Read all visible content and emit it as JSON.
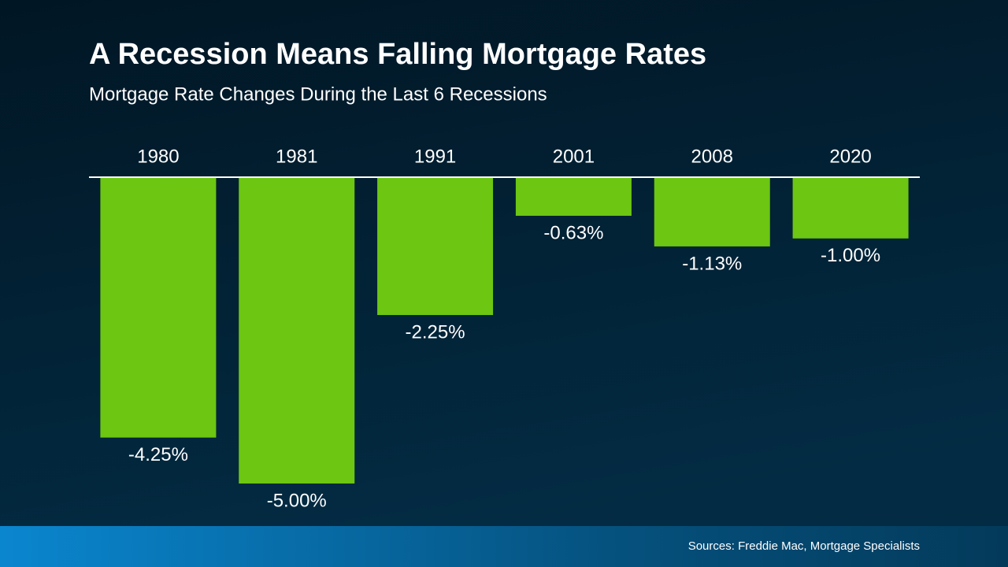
{
  "chart_data": {
    "type": "bar",
    "title": "A Recession Means Falling Mortgage Rates",
    "subtitle": "Mortgage Rate Changes During the Last 6 Recessions",
    "categories": [
      "1980",
      "1981",
      "1991",
      "2001",
      "2008",
      "2020"
    ],
    "values": [
      -4.25,
      -5.0,
      -2.25,
      -0.63,
      -1.13,
      -1.0
    ],
    "value_labels": [
      "-4.25%",
      "-5.00%",
      "-2.25%",
      "-0.63%",
      "-1.13%",
      "-1.00%"
    ],
    "color": "#6cc612",
    "source": "Sources: Freddie Mac, Mortgage Specialists"
  }
}
